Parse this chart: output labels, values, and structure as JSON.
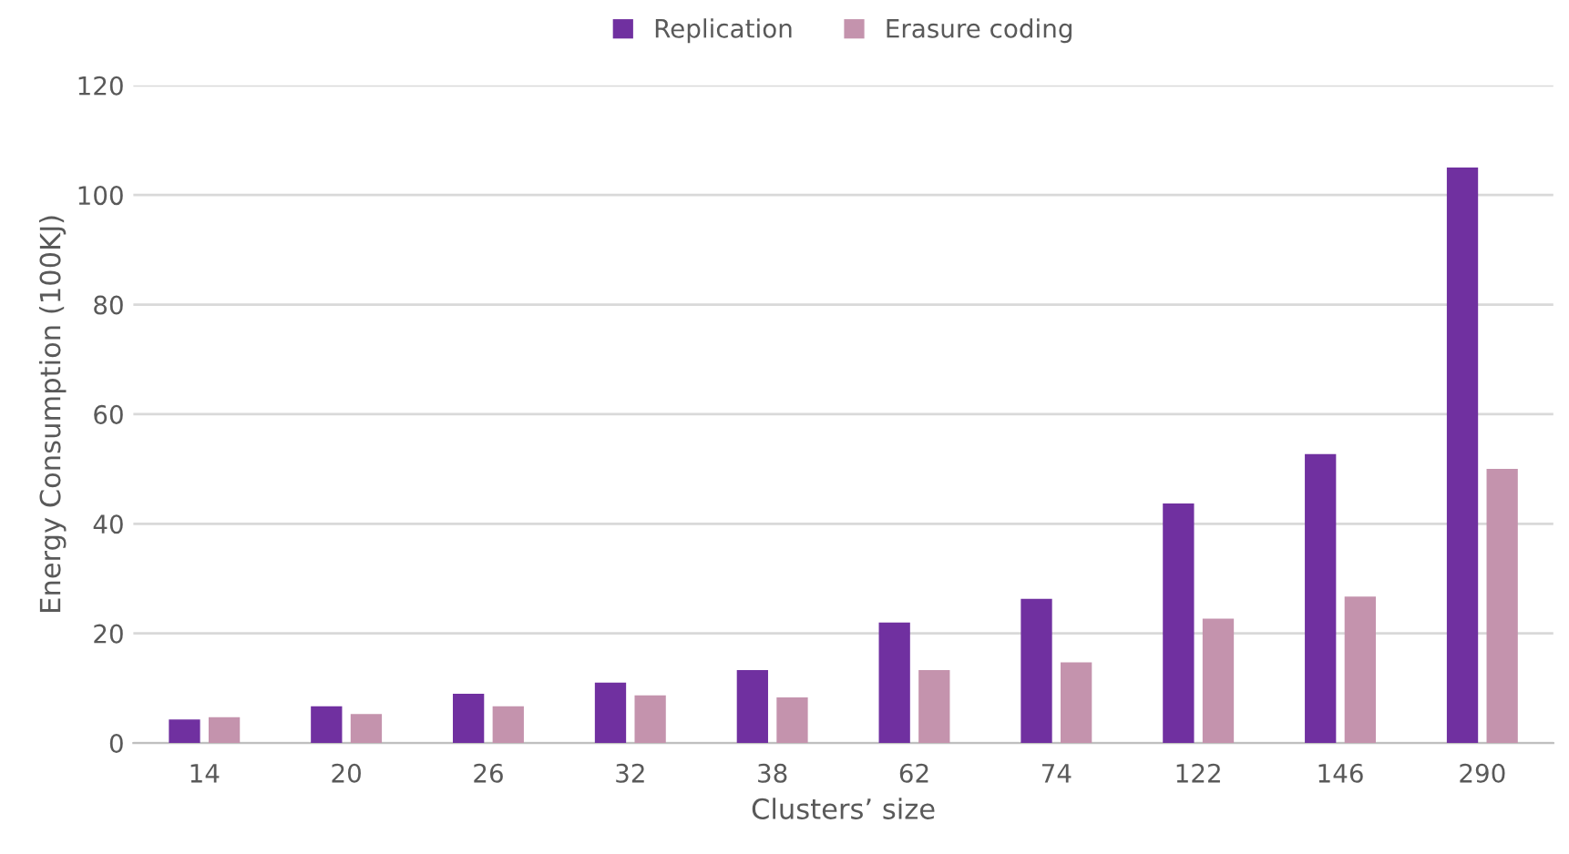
{
  "chart_data": {
    "type": "bar",
    "xlabel": "Clusters’ size",
    "ylabel": "Energy Consumption (100KJ)",
    "categories": [
      "14",
      "20",
      "26",
      "32",
      "38",
      "62",
      "74",
      "122",
      "146",
      "290"
    ],
    "series": [
      {
        "name": "Replication",
        "color": "#7030a0",
        "values": [
          4.3,
          6.7,
          9,
          11,
          13.3,
          22,
          26.3,
          43.7,
          52.7,
          105
        ]
      },
      {
        "name": "Erasure coding",
        "color": "#c493ad",
        "values": [
          4.7,
          5.3,
          6.7,
          8.7,
          8.3,
          13.3,
          14.7,
          22.7,
          26.7,
          50
        ]
      }
    ],
    "ylim": [
      0,
      120
    ],
    "yticks": [
      0,
      20,
      40,
      60,
      80,
      100,
      120
    ],
    "grid": "y",
    "legend": "top"
  }
}
